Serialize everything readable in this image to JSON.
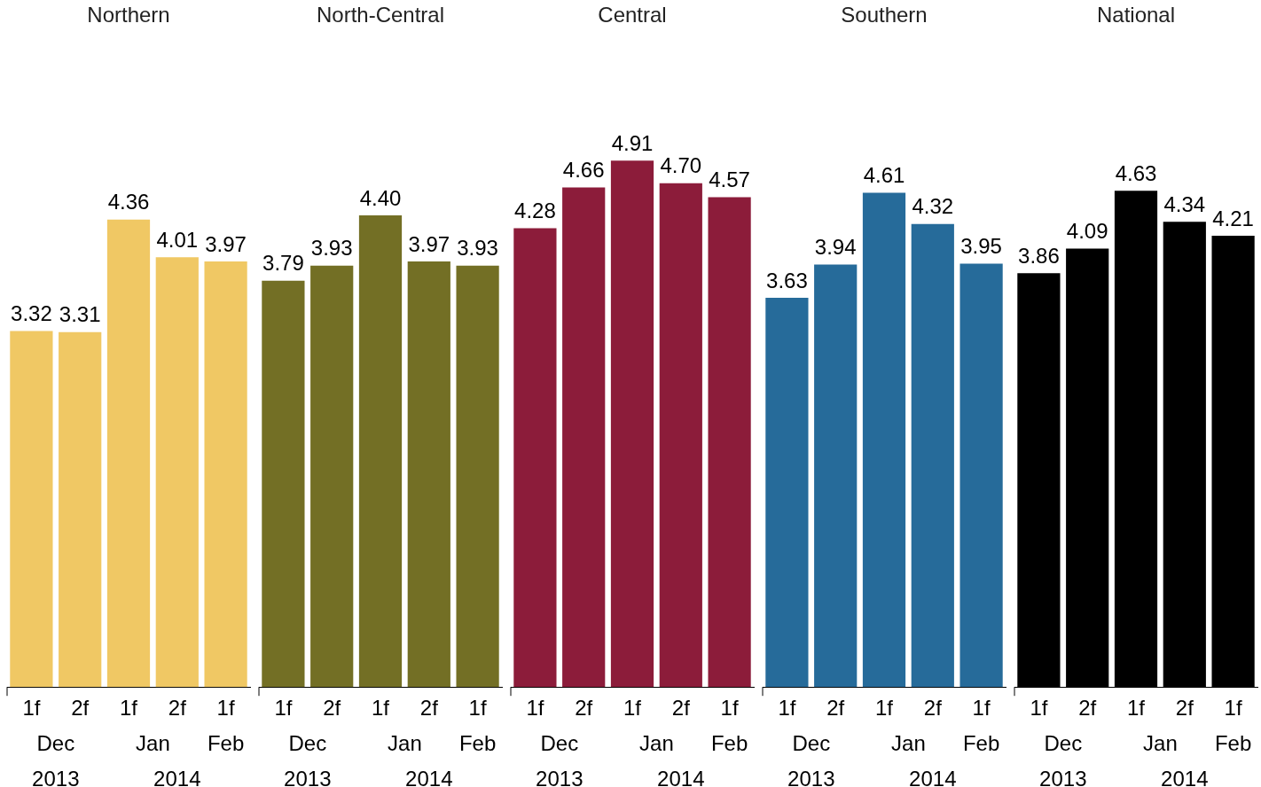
{
  "chart_data": [
    {
      "type": "bar",
      "title": "Northern",
      "categories": [
        "1f",
        "2f",
        "1f",
        "2f",
        "1f"
      ],
      "values": [
        3.32,
        3.31,
        4.36,
        4.01,
        3.97
      ],
      "value_labels": [
        "3.32",
        "3.31",
        "4.36",
        "4.01",
        "3.97"
      ],
      "color": "#f0c864",
      "annotations": [
        "Dec",
        "Jan",
        "Feb",
        "2013",
        "2014"
      ]
    },
    {
      "type": "bar",
      "title": "North-Central",
      "categories": [
        "1f",
        "2f",
        "1f",
        "2f",
        "1f"
      ],
      "values": [
        3.79,
        3.93,
        4.4,
        3.97,
        3.93
      ],
      "value_labels": [
        "3.79",
        "3.93",
        "4.40",
        "3.97",
        "3.93"
      ],
      "color": "#736f25",
      "annotations": [
        "Dec",
        "Jan",
        "Feb",
        "2013",
        "2014"
      ]
    },
    {
      "type": "bar",
      "title": "Central",
      "categories": [
        "1f",
        "2f",
        "1f",
        "2f",
        "1f"
      ],
      "values": [
        4.28,
        4.66,
        4.91,
        4.7,
        4.57
      ],
      "value_labels": [
        "4.28",
        "4.66",
        "4.91",
        "4.70",
        "4.57"
      ],
      "color": "#8c1c3a",
      "annotations": [
        "Dec",
        "Jan",
        "Feb",
        "2013",
        "2014"
      ]
    },
    {
      "type": "bar",
      "title": "Southern",
      "categories": [
        "1f",
        "2f",
        "1f",
        "2f",
        "1f"
      ],
      "values": [
        3.63,
        3.94,
        4.61,
        4.32,
        3.95
      ],
      "value_labels": [
        "3.63",
        "3.94",
        "4.61",
        "4.32",
        "3.95"
      ],
      "color": "#266b9a",
      "annotations": [
        "Dec",
        "Jan",
        "Feb",
        "2013",
        "2014"
      ]
    },
    {
      "type": "bar",
      "title": "National",
      "categories": [
        "1f",
        "2f",
        "1f",
        "2f",
        "1f"
      ],
      "values": [
        3.86,
        4.09,
        4.63,
        4.34,
        4.21
      ],
      "value_labels": [
        "3.86",
        "4.09",
        "4.63",
        "4.34",
        "4.21"
      ],
      "color": "#000000",
      "annotations": [
        "Dec",
        "Jan",
        "Feb",
        "2013",
        "2014"
      ]
    }
  ]
}
